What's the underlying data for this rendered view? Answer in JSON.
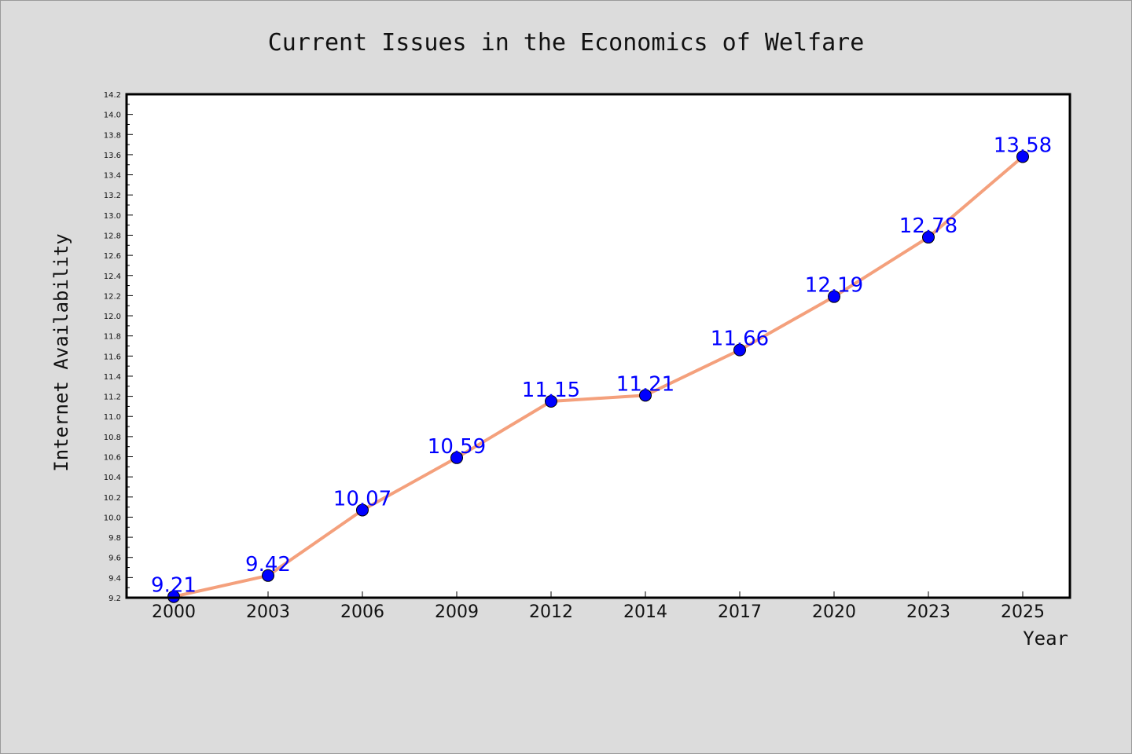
{
  "chart_data": {
    "type": "line",
    "title": "Current Issues in the Economics of Welfare",
    "xlabel": "Year",
    "ylabel": "Internet Availability",
    "categories": [
      "2000",
      "2003",
      "2006",
      "2009",
      "2012",
      "2014",
      "2017",
      "2020",
      "2023",
      "2025"
    ],
    "series": [
      {
        "values": [
          9.21,
          9.42,
          10.07,
          10.59,
          11.15,
          11.21,
          11.66,
          12.19,
          12.78,
          13.58
        ],
        "labels": [
          "9.21",
          "9.42",
          "10.07",
          "10.59",
          "11.15",
          "11.21",
          "11.66",
          "12.19",
          "12.78",
          "13.58"
        ]
      }
    ],
    "ylim": [
      9.2,
      14.2
    ],
    "yticks": [
      "9.2",
      "9.4",
      "9.6",
      "9.8",
      "10.0",
      "10.2",
      "10.4",
      "10.6",
      "10.8",
      "11.0",
      "11.2",
      "11.4",
      "11.6",
      "11.8",
      "12.0",
      "12.2",
      "12.4",
      "12.6",
      "12.8",
      "13.0",
      "13.2",
      "13.4",
      "13.6",
      "13.8",
      "14.0",
      "14.2"
    ],
    "grid": false,
    "colors": {
      "line": "#f4a07c",
      "marker": "#0000ff",
      "marker_edge": "#000000",
      "data_label": "#0000ff",
      "background": "#dcdcdc",
      "plot_area": "#ffffff"
    }
  }
}
